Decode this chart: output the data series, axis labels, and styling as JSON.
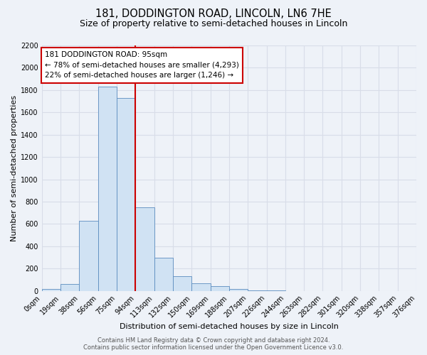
{
  "title": "181, DODDINGTON ROAD, LINCOLN, LN6 7HE",
  "subtitle": "Size of property relative to semi-detached houses in Lincoln",
  "xlabel": "Distribution of semi-detached houses by size in Lincoln",
  "ylabel": "Number of semi-detached properties",
  "bar_values": [
    20,
    60,
    630,
    1830,
    1730,
    750,
    300,
    130,
    65,
    40,
    15,
    5,
    3,
    0,
    0,
    0,
    0,
    0,
    0,
    0
  ],
  "bin_labels": [
    "0sqm",
    "19sqm",
    "38sqm",
    "56sqm",
    "75sqm",
    "94sqm",
    "113sqm",
    "132sqm",
    "150sqm",
    "169sqm",
    "188sqm",
    "207sqm",
    "226sqm",
    "244sqm",
    "263sqm",
    "282sqm",
    "301sqm",
    "320sqm",
    "338sqm",
    "357sqm",
    "376sqm"
  ],
  "bar_color": "#d0e2f3",
  "bar_edge_color": "#5b8cbf",
  "vline_x": 5.0,
  "vline_color": "#cc0000",
  "annotation_title": "181 DODDINGTON ROAD: 95sqm",
  "annotation_line1": "← 78% of semi-detached houses are smaller (4,293)",
  "annotation_line2": "22% of semi-detached houses are larger (1,246) →",
  "annotation_box_color": "#ffffff",
  "annotation_box_edge_color": "#cc0000",
  "ylim": [
    0,
    2200
  ],
  "yticks": [
    0,
    200,
    400,
    600,
    800,
    1000,
    1200,
    1400,
    1600,
    1800,
    2000,
    2200
  ],
  "footer1": "Contains HM Land Registry data © Crown copyright and database right 2024.",
  "footer2": "Contains public sector information licensed under the Open Government Licence v3.0.",
  "background_color": "#eef2f8",
  "plot_bg_color": "#eef2f8",
  "grid_color": "#d8dde8",
  "title_fontsize": 10.5,
  "subtitle_fontsize": 9,
  "axis_label_fontsize": 8,
  "tick_fontsize": 7,
  "annotation_fontsize": 7.5,
  "footer_fontsize": 6
}
